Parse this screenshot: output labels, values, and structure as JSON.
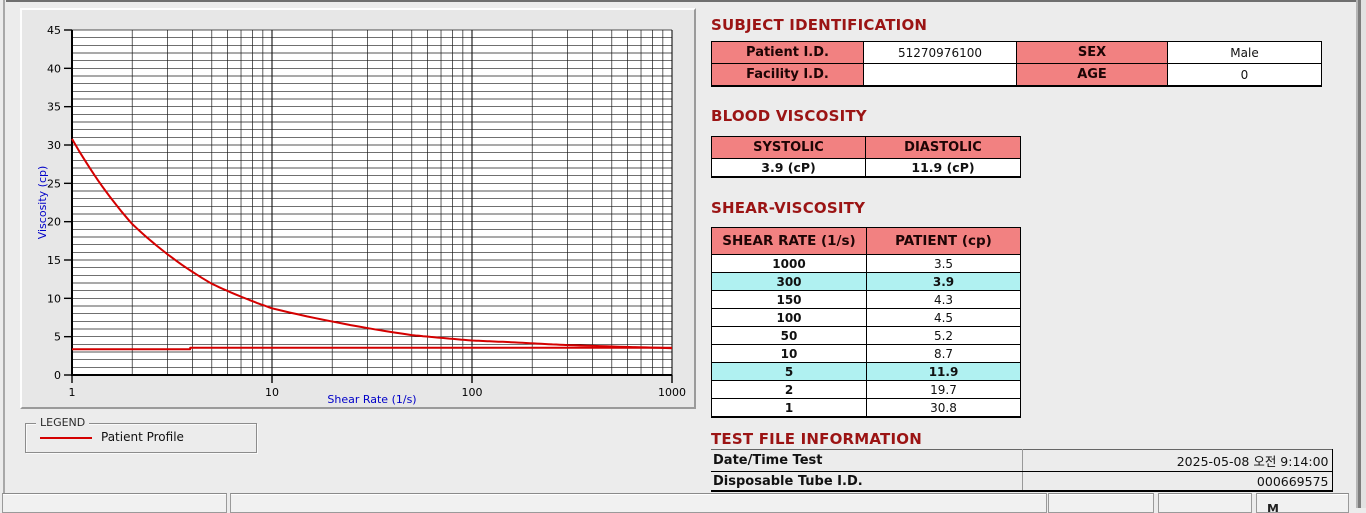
{
  "legend": {
    "title": "LEGEND",
    "entries": [
      {
        "label": "Patient Profile",
        "color": "#d40000"
      }
    ]
  },
  "chart_data": {
    "type": "line",
    "title": "",
    "xlabel": "Shear Rate (1/s)",
    "ylabel": "Viscosity (cp)",
    "x_scale": "log",
    "xlim": [
      1,
      1000
    ],
    "ylim": [
      0,
      45
    ],
    "x_major_ticks": [
      1,
      10,
      100,
      1000
    ],
    "y_major_ticks": [
      0,
      5,
      10,
      15,
      20,
      25,
      30,
      35,
      40,
      45
    ],
    "grid": "on",
    "legend_position": "below-left",
    "axis_label_color": "#0000c8",
    "series": [
      {
        "name": "Patient Profile",
        "color": "#d40000",
        "smooth": true,
        "x": [
          1,
          2,
          5,
          10,
          50,
          100,
          150,
          300,
          1000
        ],
        "y": [
          30.8,
          19.7,
          11.9,
          8.7,
          5.2,
          4.5,
          4.3,
          3.9,
          3.5
        ]
      },
      {
        "name": "reference-line",
        "color": "#d40000",
        "smooth": false,
        "x": [
          1,
          3.9,
          3.9,
          1000
        ],
        "y": [
          3.35,
          3.35,
          3.55,
          3.55
        ]
      }
    ]
  },
  "subject_identification": {
    "title": "SUBJECT IDENTIFICATION",
    "rows": [
      {
        "label1": "Patient I.D.",
        "value1": "51270976100",
        "label2": "SEX",
        "value2": "Male"
      },
      {
        "label1": "Facility I.D.",
        "value1": "",
        "label2": "AGE",
        "value2": "0"
      }
    ]
  },
  "blood_viscosity": {
    "title": "BLOOD VISCOSITY",
    "headers": [
      "SYSTOLIC",
      "DIASTOLIC"
    ],
    "values": [
      "3.9 (cP)",
      "11.9 (cP)"
    ]
  },
  "shear_viscosity": {
    "title": "SHEAR-VISCOSITY",
    "headers": [
      "SHEAR RATE (1/s)",
      "PATIENT (cp)"
    ],
    "rows": [
      {
        "rate": "1000",
        "value": "3.5",
        "highlight": false
      },
      {
        "rate": "300",
        "value": "3.9",
        "highlight": true
      },
      {
        "rate": "150",
        "value": "4.3",
        "highlight": false
      },
      {
        "rate": "100",
        "value": "4.5",
        "highlight": false
      },
      {
        "rate": "50",
        "value": "5.2",
        "highlight": false
      },
      {
        "rate": "10",
        "value": "8.7",
        "highlight": false
      },
      {
        "rate": "5",
        "value": "11.9",
        "highlight": true
      },
      {
        "rate": "2",
        "value": "19.7",
        "highlight": false
      },
      {
        "rate": "1",
        "value": "30.8",
        "highlight": false
      }
    ]
  },
  "test_file_information": {
    "title": "TEST FILE INFORMATION",
    "rows": [
      {
        "label": "Date/Time Test",
        "value": "2025-05-08   오전 9:14:00"
      },
      {
        "label": "Disposable Tube I.D.",
        "value": "000669575"
      }
    ]
  },
  "bottom_toolbar": {
    "clipped_label": "M"
  },
  "colors": {
    "header_fill": "#f28181",
    "highlight_fill": "#b0f1f1",
    "section_title": "#9b1414",
    "curve": "#d40000",
    "axis_label": "#0000c8"
  }
}
